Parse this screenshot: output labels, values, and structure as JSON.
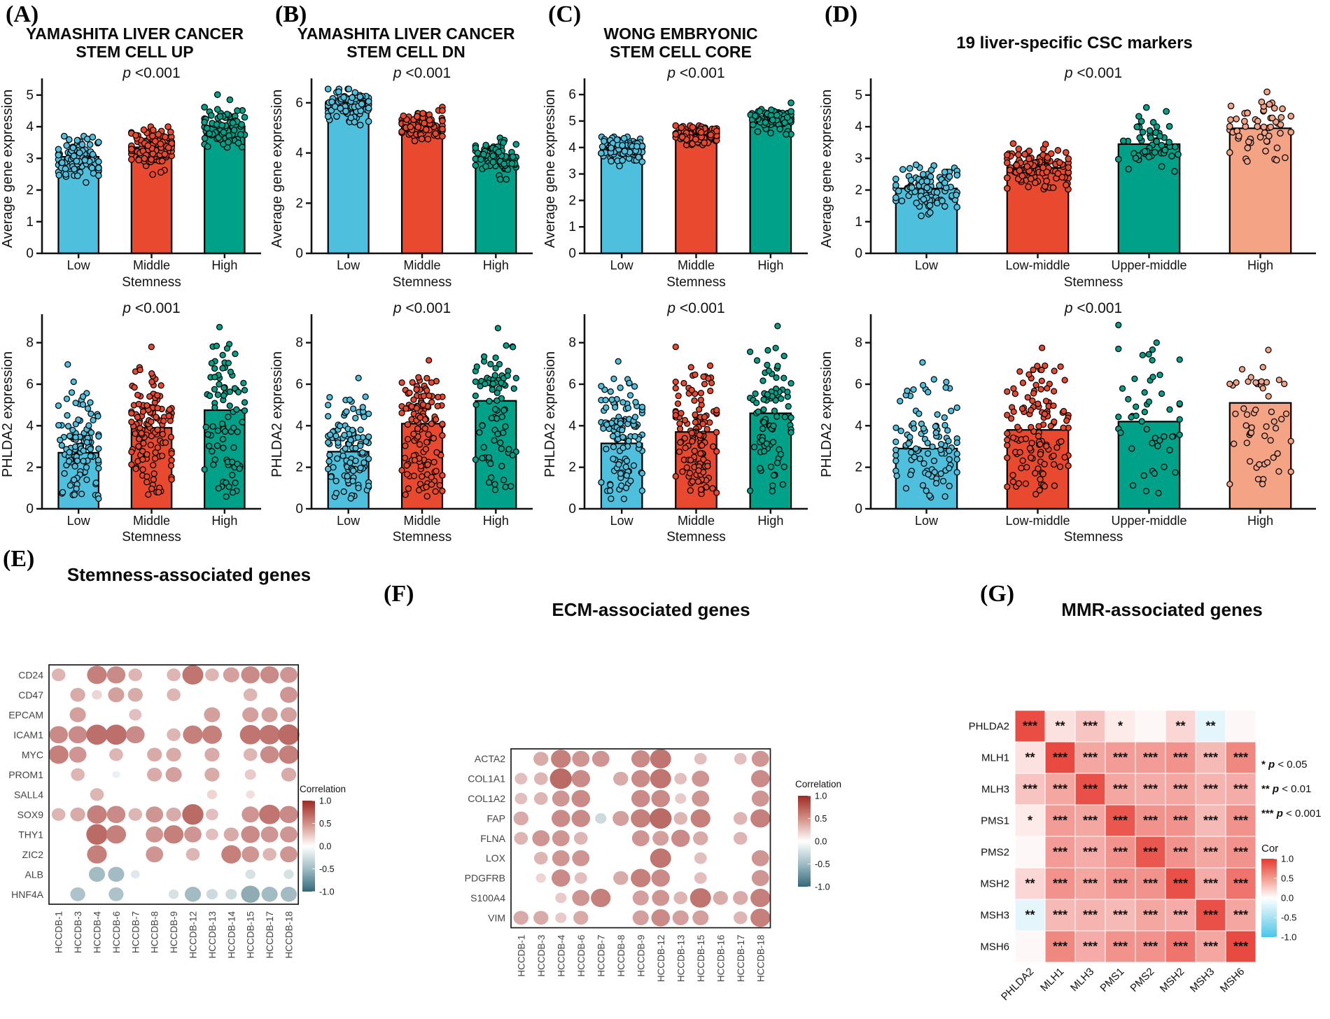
{
  "p_symbol": "p",
  "colors": {
    "cyan": "#4EC0DE",
    "red": "#E8492F",
    "teal": "#00A189",
    "salmon": "#F4A384",
    "bubble_pos": "#9E2B25",
    "bubble_neg": "#336878",
    "heat_pos": "#E6392F",
    "heat_neg": "#49C6E8",
    "axis": "#111111"
  },
  "chart_data": {
    "panels_top": [
      {
        "type": "bar",
        "letter": "(A)",
        "title_lines": [
          "YAMASHITA LIVER CANCER",
          "STEM CELL UP"
        ],
        "xlabel": "Stemness",
        "p_top": "<0.001",
        "p_bottom": "<0.001",
        "top": {
          "ylabel": "Average gene expression",
          "ylim": [
            0,
            5.35
          ],
          "yticks": [
            0,
            1,
            2,
            3,
            4,
            5
          ],
          "bars": [
            {
              "label": "Low",
              "color": "cyan",
              "mean": 3.05,
              "sd": 0.3,
              "min": 2.1,
              "max": 3.7,
              "n": 110
            },
            {
              "label": "Middle",
              "color": "red",
              "mean": 3.35,
              "sd": 0.32,
              "min": 2.35,
              "max": 4.0,
              "n": 120
            },
            {
              "label": "High",
              "color": "teal",
              "mean": 4.02,
              "sd": 0.35,
              "min": 3.35,
              "max": 5.02,
              "n": 85
            }
          ]
        },
        "bottom": {
          "ylabel": "PHLDA2 expression",
          "ylim": [
            0,
            9.1
          ],
          "yticks": [
            0,
            2,
            4,
            6,
            8
          ],
          "bars": [
            {
              "label": "Low",
              "color": "cyan",
              "mean": 2.7,
              "min": 0.45,
              "max": 6.95,
              "n": 115
            },
            {
              "label": "Middle",
              "color": "red",
              "mean": 3.9,
              "min": 0.5,
              "max": 7.8,
              "n": 130
            },
            {
              "label": "High",
              "color": "teal",
              "mean": 4.75,
              "min": 0.55,
              "max": 8.75,
              "n": 85
            }
          ]
        }
      },
      {
        "type": "bar",
        "letter": "(B)",
        "title_lines": [
          "YAMASHITA LIVER CANCER",
          "STEM CELL DN"
        ],
        "xlabel": "Stemness",
        "p_top": "<0.001",
        "p_bottom": "<0.001",
        "top": {
          "ylabel": "Average gene expression",
          "ylim": [
            0,
            6.75
          ],
          "yticks": [
            0,
            2,
            4,
            6
          ],
          "bars": [
            {
              "label": "Low",
              "color": "cyan",
              "mean": 5.9,
              "sd": 0.3,
              "min": 5.0,
              "max": 6.55,
              "n": 110
            },
            {
              "label": "Middle",
              "color": "red",
              "mean": 5.1,
              "sd": 0.28,
              "min": 4.15,
              "max": 5.9,
              "n": 120
            },
            {
              "label": "High",
              "color": "teal",
              "mean": 3.85,
              "sd": 0.35,
              "min": 2.95,
              "max": 4.6,
              "n": 85
            }
          ]
        },
        "bottom": {
          "ylabel": "PHLDA2 expression",
          "ylim": [
            0,
            9.1
          ],
          "yticks": [
            0,
            2,
            4,
            6,
            8
          ],
          "bars": [
            {
              "label": "Low",
              "color": "cyan",
              "mean": 2.75,
              "min": 0.45,
              "max": 6.3,
              "n": 115
            },
            {
              "label": "Middle",
              "color": "red",
              "mean": 4.1,
              "min": 0.5,
              "max": 7.15,
              "n": 130
            },
            {
              "label": "High",
              "color": "teal",
              "mean": 5.2,
              "min": 0.6,
              "max": 8.7,
              "n": 85
            }
          ]
        }
      },
      {
        "type": "bar",
        "letter": "(C)",
        "title_lines": [
          "WONG EMBRYONIC",
          "STEM CELL CORE"
        ],
        "xlabel": "Stemness",
        "p_top": "<0.001",
        "p_bottom": "<0.001",
        "top": {
          "ylabel": "Average gene expression",
          "ylim": [
            0,
            6.4
          ],
          "yticks": [
            0,
            1,
            2,
            3,
            4,
            5,
            6
          ],
          "bars": [
            {
              "label": "Low",
              "color": "cyan",
              "mean": 4.0,
              "sd": 0.22,
              "min": 3.25,
              "max": 4.4,
              "n": 110
            },
            {
              "label": "Middle",
              "color": "red",
              "mean": 4.5,
              "sd": 0.15,
              "min": 4.1,
              "max": 4.85,
              "n": 120
            },
            {
              "label": "High",
              "color": "teal",
              "mean": 5.15,
              "sd": 0.28,
              "min": 4.5,
              "max": 6.1,
              "n": 85
            }
          ]
        },
        "bottom": {
          "ylabel": "PHLDA2 expression",
          "ylim": [
            0,
            9.1
          ],
          "yticks": [
            0,
            2,
            4,
            6,
            8
          ],
          "bars": [
            {
              "label": "Low",
              "color": "cyan",
              "mean": 3.15,
              "min": 0.45,
              "max": 7.1,
              "n": 115
            },
            {
              "label": "Middle",
              "color": "red",
              "mean": 3.7,
              "min": 0.5,
              "max": 7.8,
              "n": 130
            },
            {
              "label": "High",
              "color": "teal",
              "mean": 4.6,
              "min": 0.6,
              "max": 8.8,
              "n": 85
            }
          ]
        }
      },
      {
        "type": "bar",
        "letter": "(D)",
        "title_lines": [
          "19 liver-specific CSC markers"
        ],
        "xlabel": "Stemness",
        "p_top": "<0.001",
        "p_bottom": "<0.001",
        "top": {
          "ylabel": "Average gene expression",
          "ylim": [
            0,
            5.35
          ],
          "yticks": [
            0,
            1,
            2,
            3,
            4,
            5
          ],
          "bars": [
            {
              "label": "Low",
              "color": "cyan",
              "mean": 2.05,
              "sd": 0.35,
              "min": 1.1,
              "max": 3.0,
              "n": 95
            },
            {
              "label": "Low-middle",
              "color": "red",
              "mean": 2.7,
              "sd": 0.35,
              "min": 1.8,
              "max": 3.8,
              "n": 125
            },
            {
              "label": "Upper-middle",
              "color": "teal",
              "mean": 3.45,
              "sd": 0.5,
              "min": 2.3,
              "max": 4.8,
              "n": 52
            },
            {
              "label": "High",
              "color": "salmon",
              "mean": 3.95,
              "sd": 0.55,
              "min": 2.5,
              "max": 5.1,
              "n": 55
            }
          ]
        },
        "bottom": {
          "ylabel": "PHLDA2 expression",
          "ylim": [
            0,
            9.1
          ],
          "yticks": [
            0,
            2,
            4,
            6,
            8
          ],
          "bars": [
            {
              "label": "Low",
              "color": "cyan",
              "mean": 2.9,
              "min": 0.45,
              "max": 7.05,
              "n": 100
            },
            {
              "label": "Low-middle",
              "color": "red",
              "mean": 3.8,
              "min": 0.5,
              "max": 7.75,
              "n": 125
            },
            {
              "label": "Upper-middle",
              "color": "teal",
              "mean": 4.2,
              "min": 0.7,
              "max": 8.85,
              "n": 50
            },
            {
              "label": "High",
              "color": "salmon",
              "mean": 5.1,
              "min": 0.8,
              "max": 7.65,
              "n": 52
            }
          ]
        }
      }
    ],
    "panels_bottom": {
      "E": {
        "type": "bubble",
        "letter": "(E)",
        "title": "Stemness-associated genes",
        "rows": [
          "CD24",
          "CD47",
          "EPCAM",
          "ICAM1",
          "MYC",
          "PROM1",
          "SALL4",
          "SOX9",
          "THY1",
          "ZIC2",
          "ALB",
          "HNF4A"
        ],
        "cols": [
          "HCCDB-1",
          "HCCDB-3",
          "HCCDB-4",
          "HCCDB-6",
          "HCCDB-7",
          "HCCDB-8",
          "HCCDB-9",
          "HCCDB-12",
          "HCCDB-13",
          "HCCDB-14",
          "HCCDB-15",
          "HCCDB-17",
          "HCCDB-18"
        ],
        "values": [
          [
            0.35,
            null,
            0.6,
            0.55,
            0.35,
            null,
            0.35,
            0.65,
            0.35,
            0.45,
            0.55,
            0.55,
            0.5
          ],
          [
            null,
            0.4,
            0.2,
            0.45,
            0.4,
            null,
            0.35,
            null,
            null,
            null,
            0.35,
            null,
            0.5
          ],
          [
            null,
            0.45,
            null,
            null,
            0.3,
            null,
            null,
            null,
            0.45,
            null,
            0.45,
            0.45,
            0.45
          ],
          [
            0.55,
            0.55,
            0.68,
            0.68,
            0.55,
            null,
            0.35,
            0.6,
            0.6,
            null,
            0.65,
            0.65,
            0.7
          ],
          [
            0.6,
            0.5,
            null,
            0.35,
            null,
            0.4,
            0.4,
            null,
            0.4,
            null,
            0.35,
            0.55,
            0.6
          ],
          [
            null,
            0.35,
            null,
            -0.1,
            null,
            0.4,
            0.45,
            null,
            0.4,
            null,
            0.25,
            null,
            0.4
          ],
          [
            null,
            null,
            0.35,
            null,
            null,
            null,
            null,
            null,
            0.2,
            null,
            0.15,
            null,
            null
          ],
          [
            0.35,
            0.4,
            0.6,
            0.55,
            0.35,
            0.5,
            0.4,
            0.7,
            0.3,
            null,
            0.5,
            0.65,
            0.55
          ],
          [
            null,
            null,
            0.7,
            0.6,
            null,
            0.5,
            0.6,
            0.5,
            0.3,
            0.4,
            0.55,
            0.5,
            0.5
          ],
          [
            null,
            null,
            0.6,
            null,
            null,
            0.5,
            null,
            0.35,
            null,
            0.6,
            0.5,
            0.35,
            0.5
          ],
          [
            null,
            null,
            -0.45,
            -0.45,
            -0.15,
            null,
            null,
            null,
            null,
            null,
            -0.2,
            null,
            -0.2
          ],
          [
            null,
            -0.4,
            null,
            -0.4,
            null,
            null,
            -0.2,
            -0.45,
            -0.25,
            -0.25,
            -0.55,
            -0.45,
            -0.45
          ]
        ],
        "legend": {
          "title": "Correlation",
          "ticks": [
            "1.0",
            "0.5",
            "0.0",
            "-0.5",
            "-1.0"
          ]
        }
      },
      "F": {
        "type": "bubble",
        "letter": "(F)",
        "title": "ECM-associated genes",
        "rows": [
          "ACTA2",
          "COL1A1",
          "COL1A2",
          "FAP",
          "FLNA",
          "LOX",
          "PDGFRB",
          "S100A4",
          "VIM"
        ],
        "cols": [
          "HCCDB-1",
          "HCCDB-3",
          "HCCDB-4",
          "HCCDB-6",
          "HCCDB-7",
          "HCCDB-8",
          "HCCDB-9",
          "HCCDB-12",
          "HCCDB-13",
          "HCCDB-15",
          "HCCDB-16",
          "HCCDB-17",
          "HCCDB-18"
        ],
        "values": [
          [
            null,
            0.4,
            0.6,
            0.5,
            0.5,
            null,
            0.55,
            0.65,
            null,
            0.3,
            null,
            0.3,
            0.5
          ],
          [
            0.3,
            0.35,
            0.7,
            0.55,
            null,
            0.4,
            0.55,
            0.65,
            0.3,
            0.5,
            null,
            null,
            0.55
          ],
          [
            0.3,
            0.35,
            0.5,
            0.55,
            null,
            null,
            0.55,
            0.55,
            0.25,
            0.5,
            null,
            null,
            0.5
          ],
          [
            0.4,
            null,
            0.55,
            0.55,
            -0.25,
            0.45,
            0.6,
            0.7,
            0.35,
            0.6,
            null,
            0.35,
            0.6
          ],
          [
            0.35,
            0.5,
            0.5,
            0.35,
            null,
            null,
            0.5,
            0.45,
            0.55,
            0.4,
            null,
            0.35,
            null
          ],
          [
            null,
            0.35,
            0.5,
            0.5,
            null,
            null,
            null,
            0.65,
            null,
            0.3,
            null,
            null,
            0.5
          ],
          [
            null,
            0.2,
            0.55,
            0.3,
            null,
            0.4,
            0.6,
            0.55,
            null,
            0.3,
            null,
            null,
            0.5
          ],
          [
            null,
            null,
            0.25,
            0.5,
            0.6,
            null,
            0.45,
            0.5,
            0.35,
            0.65,
            0.4,
            0.4,
            0.6
          ],
          [
            0.4,
            0.4,
            0.25,
            0.4,
            null,
            null,
            0.45,
            0.55,
            0.45,
            0.45,
            null,
            0.35,
            0.6
          ]
        ],
        "legend": {
          "title": "Correlation",
          "ticks": [
            "1.0",
            "0.5",
            "0.0",
            "-0.5",
            "-1.0"
          ]
        }
      },
      "G": {
        "type": "heatmap",
        "letter": "(G)",
        "title": "MMR-associated genes",
        "labels": [
          "PHLDA2",
          "MLH1",
          "MLH3",
          "PMS1",
          "PMS2",
          "MSH2",
          "MSH3",
          "MSH6"
        ],
        "values": [
          [
            0.9,
            0.15,
            0.3,
            0.1,
            0.04,
            0.2,
            -0.15,
            0.04
          ],
          [
            0.15,
            0.92,
            0.45,
            0.5,
            0.5,
            0.55,
            0.35,
            0.6
          ],
          [
            0.3,
            0.45,
            0.88,
            0.45,
            0.42,
            0.45,
            0.38,
            0.42
          ],
          [
            0.1,
            0.5,
            0.45,
            0.85,
            0.55,
            0.55,
            0.35,
            0.55
          ],
          [
            0.04,
            0.5,
            0.42,
            0.55,
            0.85,
            0.55,
            0.45,
            0.55
          ],
          [
            0.2,
            0.55,
            0.45,
            0.55,
            0.55,
            0.88,
            0.42,
            0.7
          ],
          [
            -0.15,
            0.35,
            0.38,
            0.35,
            0.45,
            0.42,
            0.88,
            0.45
          ],
          [
            0.04,
            0.6,
            0.42,
            0.55,
            0.55,
            0.7,
            0.45,
            0.92
          ]
        ],
        "stars": [
          [
            "***",
            "**",
            "***",
            "*",
            "",
            "**",
            "**",
            ""
          ],
          [
            "**",
            "***",
            "***",
            "***",
            "***",
            "***",
            "***",
            "***"
          ],
          [
            "***",
            "***",
            "***",
            "***",
            "***",
            "***",
            "***",
            "***"
          ],
          [
            "*",
            "***",
            "***",
            "***",
            "***",
            "***",
            "***",
            "***"
          ],
          [
            "",
            "***",
            "***",
            "***",
            "***",
            "***",
            "***",
            "***"
          ],
          [
            "**",
            "***",
            "***",
            "***",
            "***",
            "***",
            "***",
            "***"
          ],
          [
            "**",
            "***",
            "***",
            "***",
            "***",
            "***",
            "***",
            "***"
          ],
          [
            "",
            "***",
            "***",
            "***",
            "***",
            "***",
            "***",
            "***"
          ]
        ],
        "sig_legend": [
          {
            "stars": "*",
            "rest": "< 0.05"
          },
          {
            "stars": "**",
            "rest": "< 0.01"
          },
          {
            "stars": "***",
            "rest": "< 0.001"
          }
        ],
        "cor_legend": {
          "title": "Cor",
          "ticks": [
            "1.0",
            "0.5",
            "0.0",
            "-0.5",
            "-1.0"
          ]
        }
      }
    }
  }
}
